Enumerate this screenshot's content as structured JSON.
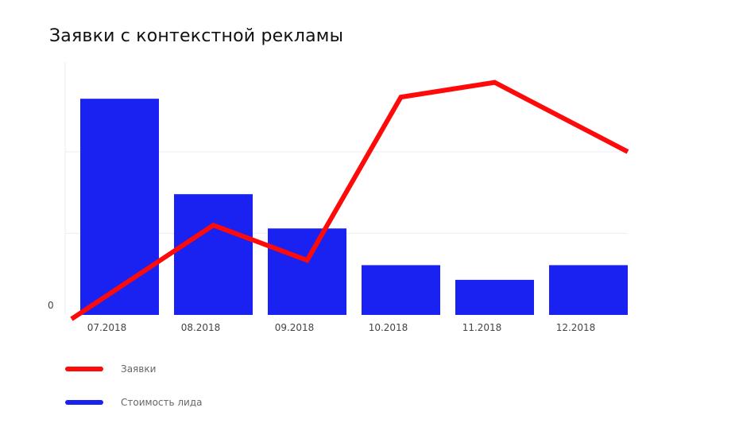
{
  "chart_data": {
    "type": "bar+line",
    "title": "Заявки с контекстной рекламы",
    "categories": [
      "07.2018",
      "08.2018",
      "09.2018",
      "10.2018",
      "11.2018",
      "12.2018"
    ],
    "yticks": [
      "0"
    ],
    "series": [
      {
        "name": "Стоимость лида",
        "type": "bar",
        "color": "#1a22f2",
        "values": [
          265,
          148,
          106,
          61,
          43,
          61
        ]
      },
      {
        "name": "Заявки",
        "type": "line",
        "color": "#ff0a0a",
        "values": [
          -5,
          110,
          67,
          267,
          285,
          200
        ]
      }
    ],
    "ylim": [
      0,
      310
    ],
    "grid": true,
    "legend_position": "bottom-left"
  }
}
